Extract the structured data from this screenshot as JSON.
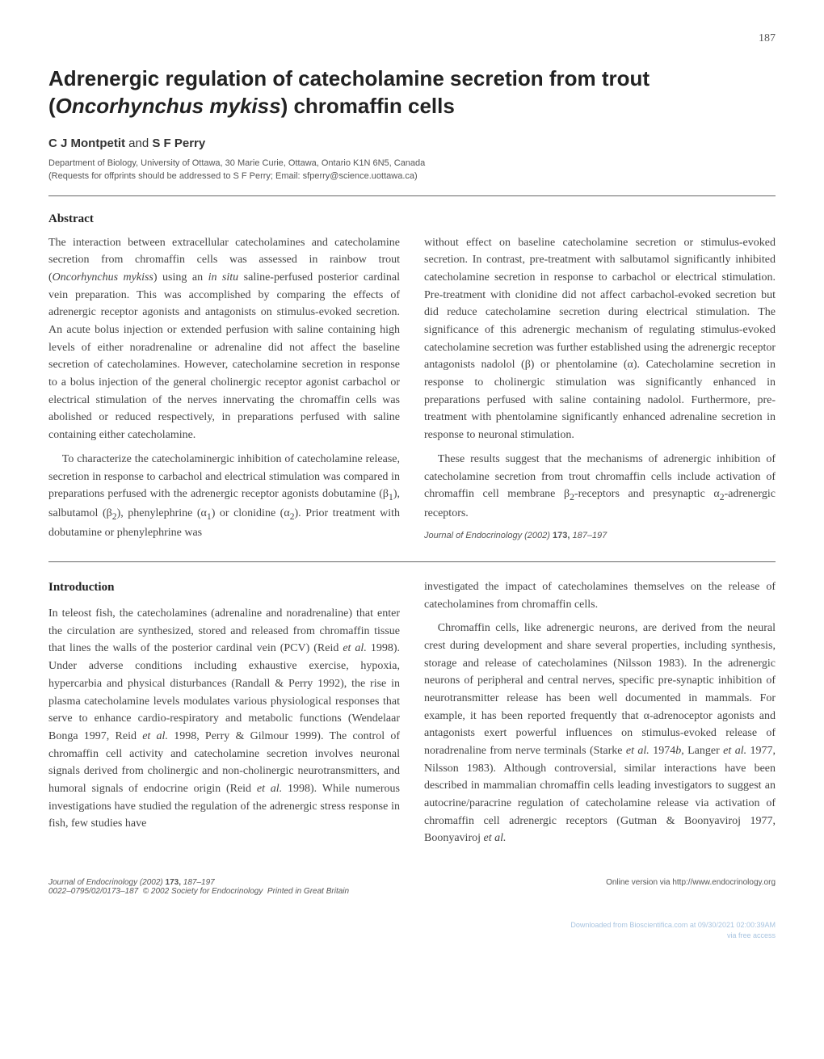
{
  "page_number": "187",
  "title_html": "Adrenergic regulation of catecholamine secretion from trout (<em>Oncorhynchus mykiss</em>) chromaffin cells",
  "authors_html": "C J Montpetit <span style='font-weight:normal'>and</span> S F Perry",
  "affiliation_line1": "Department of Biology, University of Ottawa, 30 Marie Curie, Ottawa, Ontario K1N 6N5, Canada",
  "affiliation_line2": "(Requests for offprints should be addressed to S F Perry; Email: sfperry@science.uottawa.ca)",
  "abstract_heading": "Abstract",
  "abstract_left_p1": "The interaction between extracellular catecholamines and catecholamine secretion from chromaffin cells was assessed in rainbow trout (<em>Oncorhynchus mykiss</em>) using an <em>in situ</em> saline-perfused posterior cardinal vein preparation. This was accomplished by comparing the effects of adrenergic receptor agonists and antagonists on stimulus-evoked secretion. An acute bolus injection or extended perfusion with saline containing high levels of either noradrenaline or adrenaline did not affect the baseline secretion of catecholamines. However, catecholamine secretion in response to a bolus injection of the general cholinergic receptor agonist carbachol or electrical stimulation of the nerves innervating the chromaffin cells was abolished or reduced respectively, in preparations perfused with saline containing either catecholamine.",
  "abstract_left_p2": "To characterize the catecholaminergic inhibition of catecholamine release, secretion in response to carbachol and electrical stimulation was compared in preparations perfused with the adrenergic receptor agonists dobutamine (β<sub>1</sub>), salbutamol (β<sub>2</sub>), phenylephrine (α<sub>1</sub>) or clonidine (α<sub>2</sub>). Prior treatment with dobutamine or phenylephrine was",
  "abstract_right_p1": "without effect on baseline catecholamine secretion or stimulus-evoked secretion. In contrast, pre-treatment with salbutamol significantly inhibited catecholamine secretion in response to carbachol or electrical stimulation. Pre-treatment with clonidine did not affect carbachol-evoked secretion but did reduce catecholamine secretion during electrical stimulation. The significance of this adrenergic mechanism of regulating stimulus-evoked catecholamine secretion was further established using the adrenergic receptor antagonists nadolol (β) or phentolamine (α). Catecholamine secretion in response to cholinergic stimulation was significantly enhanced in preparations perfused with saline containing nadolol. Furthermore, pre-treatment with phentolamine significantly enhanced adrenaline secretion in response to neuronal stimulation.",
  "abstract_right_p2": "These results suggest that the mechanisms of adrenergic inhibition of catecholamine secretion from trout chromaffin cells include activation of chromaffin cell membrane β<sub>2</sub>-receptors and presynaptic α<sub>2</sub>-adrenergic receptors.",
  "abstract_citation_html": "Journal of Endocrinology (2002) <b>173,</b> 187–197",
  "intro_heading": "Introduction",
  "intro_left_p1": "In teleost fish, the catecholamines (adrenaline and noradrenaline) that enter the circulation are synthesized, stored and released from chromaffin tissue that lines the walls of the posterior cardinal vein (PCV) (Reid <em>et al.</em> 1998). Under adverse conditions including exhaustive exercise, hypoxia, hypercarbia and physical disturbances (Randall & Perry 1992), the rise in plasma catecholamine levels modulates various physiological responses that serve to enhance cardio-respiratory and metabolic functions (Wendelaar Bonga 1997, Reid <em>et al.</em> 1998, Perry & Gilmour 1999). The control of chromaffin cell activity and catecholamine secretion involves neuronal signals derived from cholinergic and non-cholinergic neurotransmitters, and humoral signals of endocrine origin (Reid <em>et al.</em> 1998). While numerous investigations have studied the regulation of the adrenergic stress response in fish, few studies have",
  "intro_right_p1": "investigated the impact of catecholamines themselves on the release of catecholamines from chromaffin cells.",
  "intro_right_p2": "Chromaffin cells, like adrenergic neurons, are derived from the neural crest during development and share several properties, including synthesis, storage and release of catecholamines (Nilsson 1983). In the adrenergic neurons of peripheral and central nerves, specific pre-synaptic inhibition of neurotransmitter release has been well documented in mammals. For example, it has been reported frequently that α-adrenoceptor agonists and antagonists exert powerful influences on stimulus-evoked release of noradrenaline from nerve terminals (Starke <em>et al.</em> 1974<em>b</em>, Langer <em>et al.</em> 1977, Nilsson 1983). Although controversial, similar interactions have been described in mammalian chromaffin cells leading investigators to suggest an autocrine/paracrine regulation of catecholamine release via activation of chromaffin cell adrenergic receptors (Gutman & Boonyaviroj 1977, Boonyaviroj <em>et al.</em>",
  "footer_left_html": "<em>Journal of Endocrinology</em> (2002) <b>173,</b> 187–197<br>0022–0795/02/0173–187 &nbsp;© 2002 Society for Endocrinology &nbsp;<em>Printed in Great Britain</em>",
  "footer_right": "Online version via http://www.endocrinology.org",
  "watermark_line1": "Downloaded from Bioscientifica.com at 09/30/2021 02:00:39AM",
  "watermark_line2": "via free access"
}
